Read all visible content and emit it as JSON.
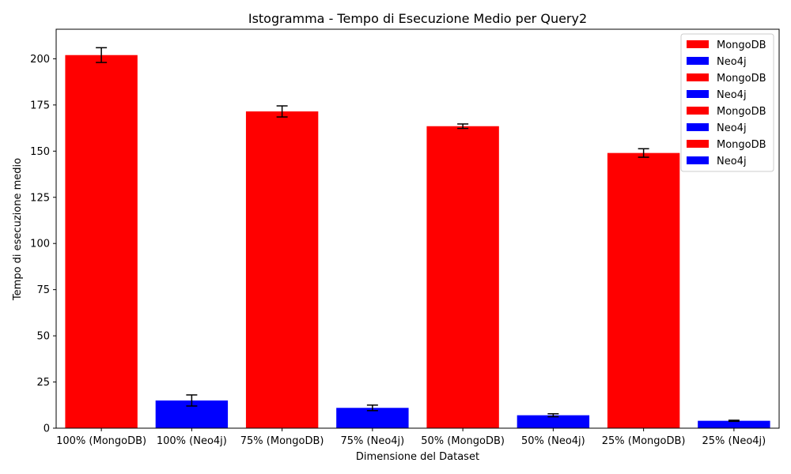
{
  "chart_data": {
    "type": "bar",
    "title": "Istogramma - Tempo di Esecuzione Medio per Query2",
    "xlabel": "Dimensione del Dataset",
    "ylabel": "Tempo di esecuzione medio",
    "ylim": [
      0,
      216
    ],
    "yticks": [
      0,
      25,
      50,
      75,
      100,
      125,
      150,
      175,
      200
    ],
    "categories": [
      "100% (MongoDB)",
      "100% (Neo4j)",
      "75% (MongoDB)",
      "75% (Neo4j)",
      "50% (MongoDB)",
      "50% (Neo4j)",
      "25% (MongoDB)",
      "25% (Neo4j)"
    ],
    "values": [
      202,
      15,
      171.5,
      11,
      163.5,
      7,
      149,
      4
    ],
    "errors": [
      4,
      3,
      3,
      1.5,
      1.2,
      0.8,
      2.3,
      0.3
    ],
    "series_of_bar": [
      "MongoDB",
      "Neo4j",
      "MongoDB",
      "Neo4j",
      "MongoDB",
      "Neo4j",
      "MongoDB",
      "Neo4j"
    ],
    "series": [
      {
        "name": "MongoDB",
        "color": "#ff0000"
      },
      {
        "name": "Neo4j",
        "color": "#0000ff"
      }
    ],
    "legend": {
      "placement": "top-right",
      "entries": [
        "MongoDB",
        "Neo4j",
        "MongoDB",
        "Neo4j",
        "MongoDB",
        "Neo4j",
        "MongoDB",
        "Neo4j"
      ]
    },
    "grid": false
  }
}
